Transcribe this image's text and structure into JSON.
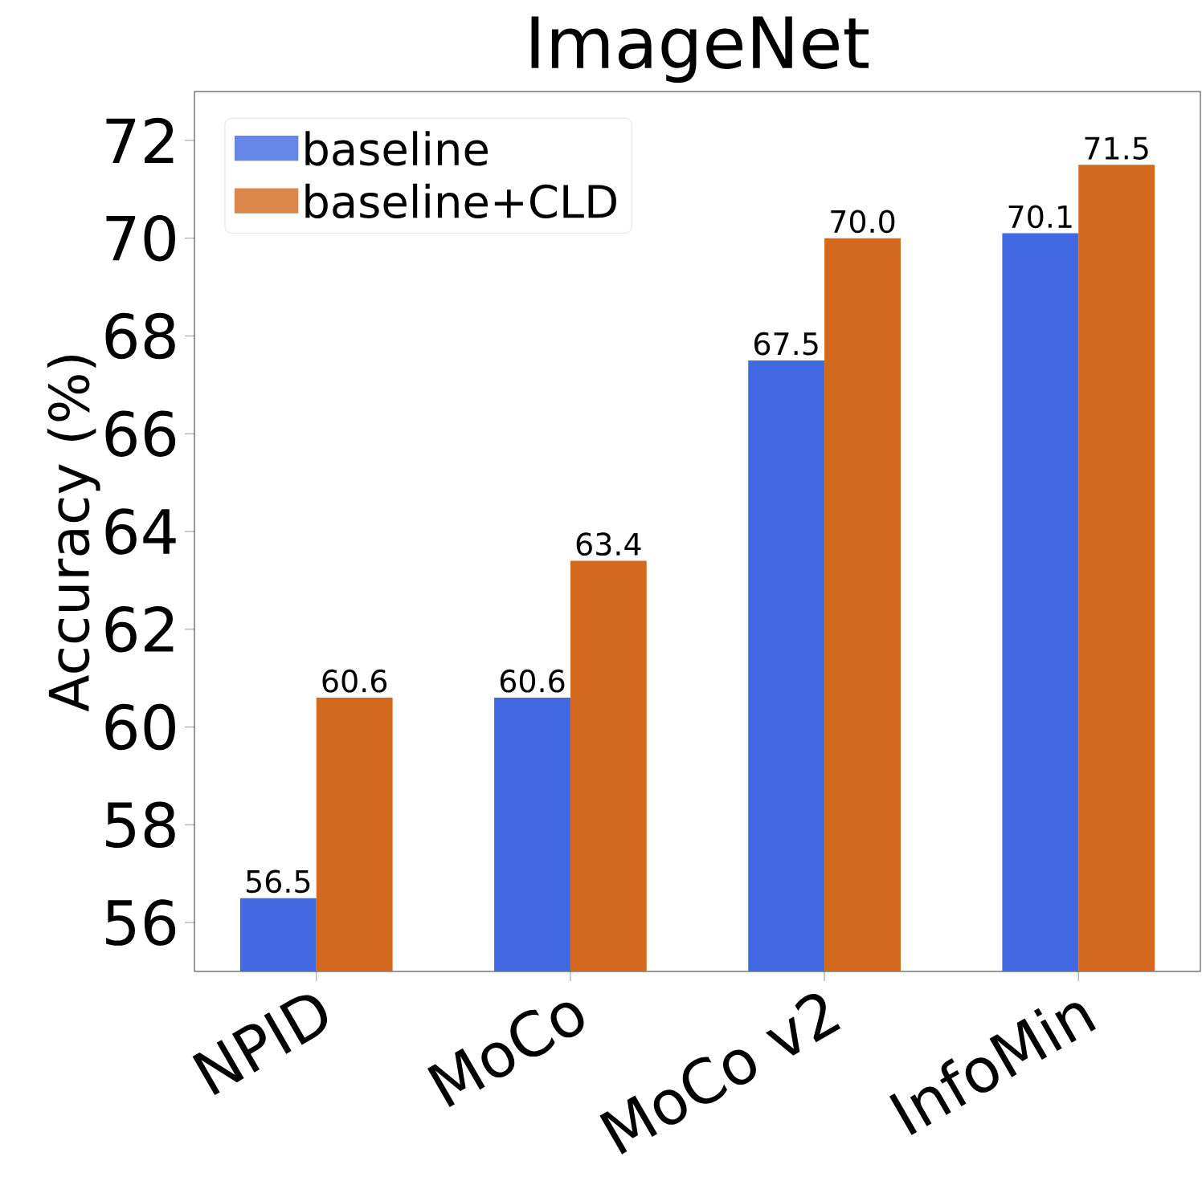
{
  "chart_data": {
    "type": "bar",
    "title": "ImageNet",
    "ylabel": "Accuracy (%)",
    "categories": [
      "NPID",
      "MoCo",
      "MoCo v2",
      "InfoMin"
    ],
    "series": [
      {
        "name": "baseline",
        "color": "#4169e1",
        "values": [
          56.5,
          60.6,
          67.5,
          70.1
        ],
        "value_labels": [
          "56.5",
          "60.6",
          "67.5",
          "70.1"
        ]
      },
      {
        "name": "baseline+CLD",
        "color": "#d2691e",
        "values": [
          60.6,
          63.4,
          70.0,
          71.5
        ],
        "value_labels": [
          "60.6",
          "63.4",
          "70.0",
          "71.5"
        ]
      }
    ],
    "ylim": [
      55,
      73
    ],
    "yticks": [
      56,
      58,
      60,
      62,
      64,
      66,
      68,
      70,
      72
    ],
    "legend": "top left",
    "grid": false
  }
}
